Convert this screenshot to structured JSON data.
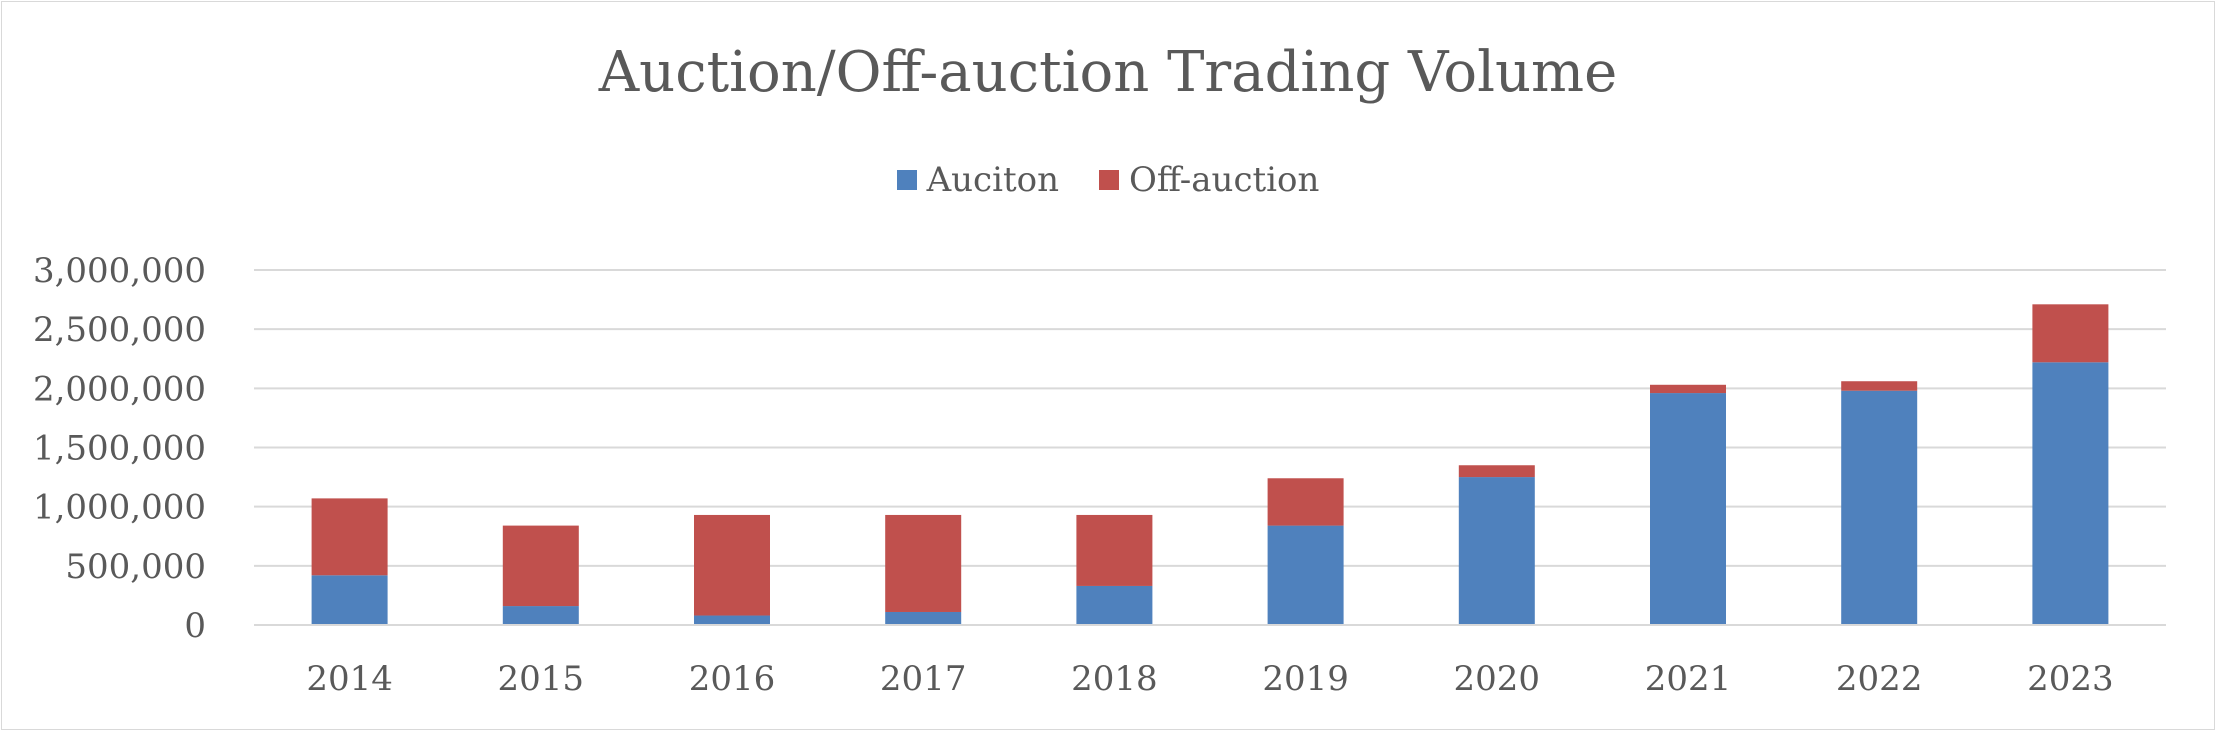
{
  "chart_data": {
    "type": "bar",
    "stacked": true,
    "title": "Auction/Off-auction Trading Volume",
    "categories": [
      "2014",
      "2015",
      "2016",
      "2017",
      "2018",
      "2019",
      "2020",
      "2021",
      "2022",
      "2023"
    ],
    "series": [
      {
        "name": "Auciton",
        "color": "#4F81BD",
        "values": [
          420000,
          160000,
          80000,
          110000,
          330000,
          840000,
          1250000,
          1960000,
          1980000,
          2220000
        ]
      },
      {
        "name": "Off-auction",
        "color": "#C0504D",
        "values": [
          650000,
          680000,
          850000,
          820000,
          600000,
          400000,
          100000,
          70000,
          80000,
          490000
        ]
      }
    ],
    "ylim": [
      0,
      3000000
    ],
    "yticks": [
      "0",
      "500,000",
      "1,000,000",
      "1,500,000",
      "2,000,000",
      "2,500,000",
      "3,000,000"
    ],
    "grid": true,
    "legend_position": "top"
  }
}
